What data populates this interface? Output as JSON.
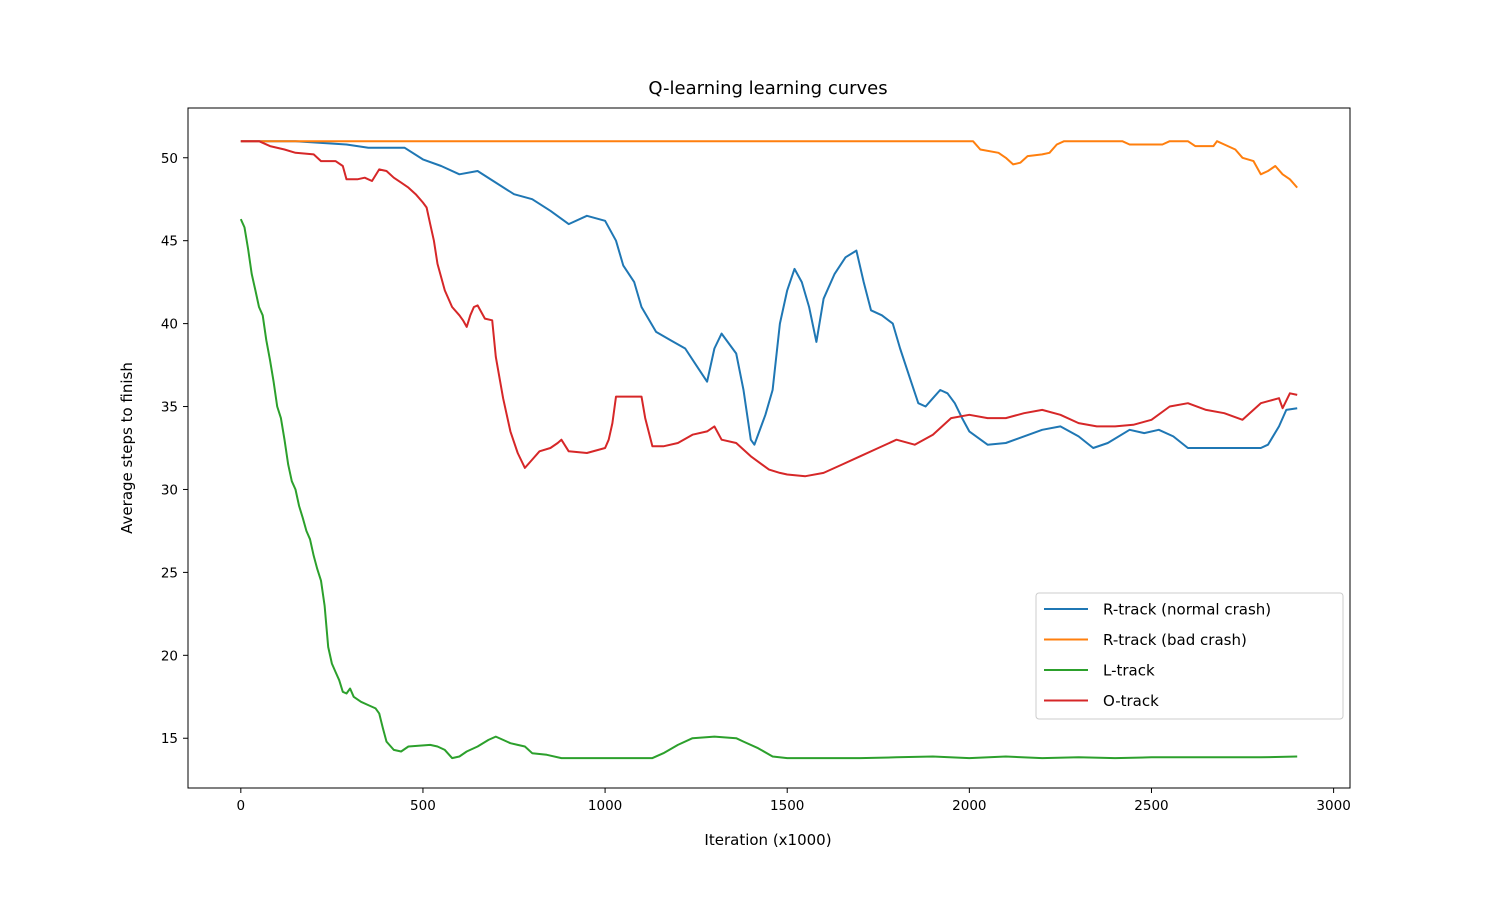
{
  "chart_data": {
    "type": "line",
    "title": "Q-learning learning curves",
    "xlabel": "Iteration (x1000)",
    "ylabel": "Average steps to finish",
    "xlim": [
      -145,
      3045
    ],
    "ylim": [
      12.0,
      53.0
    ],
    "xticks": [
      0,
      500,
      1000,
      1500,
      2000,
      2500,
      3000
    ],
    "yticks": [
      15,
      20,
      25,
      30,
      35,
      40,
      45,
      50
    ],
    "grid": false,
    "legend_position": "lower-right",
    "series": [
      {
        "name": "R-track (normal crash)",
        "color": "#1f77b4",
        "points": [
          [
            0,
            51.0
          ],
          [
            150,
            51.0
          ],
          [
            290,
            50.8
          ],
          [
            350,
            50.6
          ],
          [
            450,
            50.6
          ],
          [
            500,
            49.9
          ],
          [
            550,
            49.5
          ],
          [
            600,
            49.0
          ],
          [
            650,
            49.2
          ],
          [
            700,
            48.5
          ],
          [
            750,
            47.8
          ],
          [
            800,
            47.5
          ],
          [
            850,
            46.8
          ],
          [
            900,
            46.0
          ],
          [
            950,
            46.5
          ],
          [
            1000,
            46.2
          ],
          [
            1030,
            45.0
          ],
          [
            1050,
            43.5
          ],
          [
            1080,
            42.5
          ],
          [
            1100,
            41.0
          ],
          [
            1140,
            39.5
          ],
          [
            1180,
            39.0
          ],
          [
            1220,
            38.5
          ],
          [
            1250,
            37.5
          ],
          [
            1280,
            36.5
          ],
          [
            1300,
            38.5
          ],
          [
            1320,
            39.4
          ],
          [
            1360,
            38.2
          ],
          [
            1380,
            36.0
          ],
          [
            1400,
            33.0
          ],
          [
            1410,
            32.7
          ],
          [
            1440,
            34.5
          ],
          [
            1460,
            36.0
          ],
          [
            1480,
            40.0
          ],
          [
            1500,
            42.0
          ],
          [
            1520,
            43.3
          ],
          [
            1540,
            42.5
          ],
          [
            1560,
            41.0
          ],
          [
            1580,
            38.9
          ],
          [
            1600,
            41.5
          ],
          [
            1630,
            43.0
          ],
          [
            1660,
            44.0
          ],
          [
            1690,
            44.4
          ],
          [
            1710,
            42.5
          ],
          [
            1730,
            40.8
          ],
          [
            1760,
            40.5
          ],
          [
            1790,
            40.0
          ],
          [
            1810,
            38.5
          ],
          [
            1840,
            36.5
          ],
          [
            1860,
            35.2
          ],
          [
            1880,
            35.0
          ],
          [
            1900,
            35.5
          ],
          [
            1920,
            36.0
          ],
          [
            1940,
            35.8
          ],
          [
            1960,
            35.2
          ],
          [
            1980,
            34.3
          ],
          [
            2000,
            33.5
          ],
          [
            2050,
            32.7
          ],
          [
            2100,
            32.8
          ],
          [
            2200,
            33.6
          ],
          [
            2250,
            33.8
          ],
          [
            2300,
            33.2
          ],
          [
            2340,
            32.5
          ],
          [
            2380,
            32.8
          ],
          [
            2440,
            33.6
          ],
          [
            2480,
            33.4
          ],
          [
            2520,
            33.6
          ],
          [
            2560,
            33.2
          ],
          [
            2600,
            32.5
          ],
          [
            2700,
            32.5
          ],
          [
            2800,
            32.5
          ],
          [
            2820,
            32.7
          ],
          [
            2850,
            33.8
          ],
          [
            2870,
            34.8
          ],
          [
            2900,
            34.9
          ]
        ]
      },
      {
        "name": "R-track (bad crash)",
        "color": "#ff7f0e",
        "points": [
          [
            0,
            51.0
          ],
          [
            2010,
            51.0
          ],
          [
            2030,
            50.5
          ],
          [
            2080,
            50.3
          ],
          [
            2100,
            50.0
          ],
          [
            2120,
            49.6
          ],
          [
            2140,
            49.7
          ],
          [
            2160,
            50.1
          ],
          [
            2200,
            50.2
          ],
          [
            2220,
            50.3
          ],
          [
            2240,
            50.8
          ],
          [
            2260,
            51.0
          ],
          [
            2420,
            51.0
          ],
          [
            2440,
            50.8
          ],
          [
            2530,
            50.8
          ],
          [
            2550,
            51.0
          ],
          [
            2600,
            51.0
          ],
          [
            2620,
            50.7
          ],
          [
            2670,
            50.7
          ],
          [
            2680,
            51.0
          ],
          [
            2700,
            50.8
          ],
          [
            2730,
            50.5
          ],
          [
            2750,
            50.0
          ],
          [
            2780,
            49.8
          ],
          [
            2800,
            49.0
          ],
          [
            2820,
            49.2
          ],
          [
            2840,
            49.5
          ],
          [
            2860,
            49.0
          ],
          [
            2880,
            48.7
          ],
          [
            2900,
            48.2
          ]
        ]
      },
      {
        "name": "L-track",
        "color": "#2ca02c",
        "points": [
          [
            0,
            46.3
          ],
          [
            10,
            45.8
          ],
          [
            20,
            44.5
          ],
          [
            30,
            43.0
          ],
          [
            40,
            42.0
          ],
          [
            50,
            41.0
          ],
          [
            60,
            40.5
          ],
          [
            70,
            39.0
          ],
          [
            80,
            37.8
          ],
          [
            90,
            36.5
          ],
          [
            100,
            35.0
          ],
          [
            110,
            34.3
          ],
          [
            120,
            33.0
          ],
          [
            130,
            31.5
          ],
          [
            140,
            30.5
          ],
          [
            150,
            30.0
          ],
          [
            160,
            29.0
          ],
          [
            170,
            28.3
          ],
          [
            180,
            27.5
          ],
          [
            190,
            27.0
          ],
          [
            200,
            26.0
          ],
          [
            210,
            25.2
          ],
          [
            220,
            24.5
          ],
          [
            230,
            23.0
          ],
          [
            240,
            20.5
          ],
          [
            250,
            19.5
          ],
          [
            260,
            19.0
          ],
          [
            270,
            18.5
          ],
          [
            280,
            17.8
          ],
          [
            290,
            17.7
          ],
          [
            300,
            18.0
          ],
          [
            310,
            17.5
          ],
          [
            330,
            17.2
          ],
          [
            350,
            17.0
          ],
          [
            370,
            16.8
          ],
          [
            380,
            16.5
          ],
          [
            390,
            15.6
          ],
          [
            400,
            14.8
          ],
          [
            420,
            14.3
          ],
          [
            440,
            14.2
          ],
          [
            460,
            14.5
          ],
          [
            520,
            14.6
          ],
          [
            540,
            14.5
          ],
          [
            560,
            14.3
          ],
          [
            580,
            13.8
          ],
          [
            600,
            13.9
          ],
          [
            620,
            14.2
          ],
          [
            650,
            14.5
          ],
          [
            680,
            14.9
          ],
          [
            700,
            15.1
          ],
          [
            720,
            14.9
          ],
          [
            740,
            14.7
          ],
          [
            760,
            14.6
          ],
          [
            780,
            14.5
          ],
          [
            800,
            14.1
          ],
          [
            840,
            14.0
          ],
          [
            880,
            13.8
          ],
          [
            1000,
            13.8
          ],
          [
            1130,
            13.8
          ],
          [
            1160,
            14.1
          ],
          [
            1200,
            14.6
          ],
          [
            1240,
            15.0
          ],
          [
            1300,
            15.1
          ],
          [
            1360,
            15.0
          ],
          [
            1380,
            14.8
          ],
          [
            1420,
            14.4
          ],
          [
            1460,
            13.9
          ],
          [
            1500,
            13.8
          ],
          [
            1600,
            13.8
          ],
          [
            1700,
            13.8
          ],
          [
            1800,
            13.85
          ],
          [
            1900,
            13.9
          ],
          [
            2000,
            13.8
          ],
          [
            2100,
            13.9
          ],
          [
            2200,
            13.8
          ],
          [
            2300,
            13.85
          ],
          [
            2400,
            13.8
          ],
          [
            2500,
            13.85
          ],
          [
            2600,
            13.85
          ],
          [
            2700,
            13.85
          ],
          [
            2800,
            13.85
          ],
          [
            2900,
            13.9
          ]
        ]
      },
      {
        "name": "O-track",
        "color": "#d62728",
        "points": [
          [
            0,
            51.0
          ],
          [
            50,
            51.0
          ],
          [
            80,
            50.7
          ],
          [
            120,
            50.5
          ],
          [
            150,
            50.3
          ],
          [
            200,
            50.2
          ],
          [
            220,
            49.8
          ],
          [
            260,
            49.8
          ],
          [
            280,
            49.5
          ],
          [
            290,
            48.7
          ],
          [
            320,
            48.7
          ],
          [
            340,
            48.8
          ],
          [
            360,
            48.6
          ],
          [
            380,
            49.3
          ],
          [
            400,
            49.2
          ],
          [
            420,
            48.8
          ],
          [
            440,
            48.5
          ],
          [
            460,
            48.2
          ],
          [
            480,
            47.8
          ],
          [
            500,
            47.3
          ],
          [
            510,
            47.0
          ],
          [
            520,
            46.0
          ],
          [
            530,
            45.0
          ],
          [
            540,
            43.6
          ],
          [
            560,
            42.0
          ],
          [
            580,
            41.0
          ],
          [
            600,
            40.5
          ],
          [
            610,
            40.2
          ],
          [
            620,
            39.8
          ],
          [
            630,
            40.5
          ],
          [
            640,
            41.0
          ],
          [
            650,
            41.1
          ],
          [
            670,
            40.3
          ],
          [
            690,
            40.2
          ],
          [
            700,
            38.0
          ],
          [
            720,
            35.5
          ],
          [
            740,
            33.5
          ],
          [
            760,
            32.2
          ],
          [
            780,
            31.3
          ],
          [
            800,
            31.8
          ],
          [
            820,
            32.3
          ],
          [
            850,
            32.5
          ],
          [
            870,
            32.8
          ],
          [
            880,
            33.0
          ],
          [
            900,
            32.3
          ],
          [
            950,
            32.2
          ],
          [
            1000,
            32.5
          ],
          [
            1010,
            33.0
          ],
          [
            1020,
            34.0
          ],
          [
            1030,
            35.6
          ],
          [
            1080,
            35.6
          ],
          [
            1100,
            35.6
          ],
          [
            1110,
            34.3
          ],
          [
            1130,
            32.6
          ],
          [
            1160,
            32.6
          ],
          [
            1200,
            32.8
          ],
          [
            1240,
            33.3
          ],
          [
            1280,
            33.5
          ],
          [
            1300,
            33.8
          ],
          [
            1320,
            33.0
          ],
          [
            1360,
            32.8
          ],
          [
            1400,
            32.0
          ],
          [
            1450,
            31.2
          ],
          [
            1480,
            31.0
          ],
          [
            1500,
            30.9
          ],
          [
            1550,
            30.8
          ],
          [
            1600,
            31.0
          ],
          [
            1650,
            31.5
          ],
          [
            1700,
            32.0
          ],
          [
            1750,
            32.5
          ],
          [
            1800,
            33.0
          ],
          [
            1850,
            32.7
          ],
          [
            1900,
            33.3
          ],
          [
            1950,
            34.3
          ],
          [
            2000,
            34.5
          ],
          [
            2050,
            34.3
          ],
          [
            2100,
            34.3
          ],
          [
            2150,
            34.6
          ],
          [
            2200,
            34.8
          ],
          [
            2250,
            34.5
          ],
          [
            2300,
            34.0
          ],
          [
            2350,
            33.8
          ],
          [
            2400,
            33.8
          ],
          [
            2450,
            33.9
          ],
          [
            2500,
            34.2
          ],
          [
            2550,
            35.0
          ],
          [
            2600,
            35.2
          ],
          [
            2650,
            34.8
          ],
          [
            2700,
            34.6
          ],
          [
            2750,
            34.2
          ],
          [
            2800,
            35.2
          ],
          [
            2850,
            35.5
          ],
          [
            2860,
            34.9
          ],
          [
            2880,
            35.8
          ],
          [
            2900,
            35.7
          ]
        ]
      }
    ]
  }
}
